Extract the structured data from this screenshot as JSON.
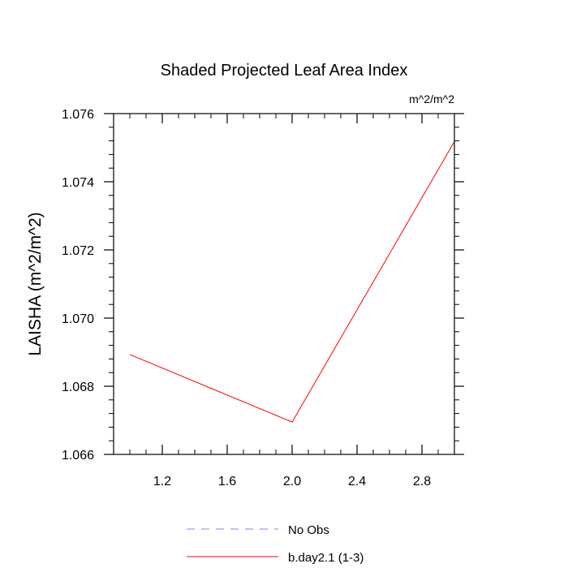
{
  "chart_data": {
    "type": "line",
    "title": "Shaded Projected Leaf Area Index",
    "units_label": "m^2/m^2",
    "ylabel": "LAISHA  (m^2/m^2)",
    "xlim": [
      0.9,
      3.0
    ],
    "ylim": [
      1.066,
      1.076
    ],
    "x_ticks": [
      1.2,
      1.6,
      2.0,
      2.4,
      2.8
    ],
    "x_tick_labels": [
      "1.2",
      "1.6",
      "2.0",
      "2.4",
      "2.8"
    ],
    "y_ticks": [
      1.066,
      1.068,
      1.07,
      1.072,
      1.074,
      1.076
    ],
    "y_tick_labels": [
      "1.066",
      "1.068",
      "1.070",
      "1.072",
      "1.074",
      "1.076"
    ],
    "series": [
      {
        "name": "b.day2.1 (1-3)",
        "color": "#ff0000",
        "dash": "solid",
        "x": [
          1.0,
          2.0,
          3.0
        ],
        "y": [
          1.06893,
          1.06695,
          1.07518
        ]
      }
    ],
    "legend": {
      "placement": "bottom-center",
      "entries": [
        {
          "label": "No Obs",
          "color": "#8080ff",
          "dash": "dashed"
        },
        {
          "label": "b.day2.1 (1-3)",
          "color": "#ff0000",
          "dash": "solid"
        }
      ]
    },
    "grid": false
  }
}
